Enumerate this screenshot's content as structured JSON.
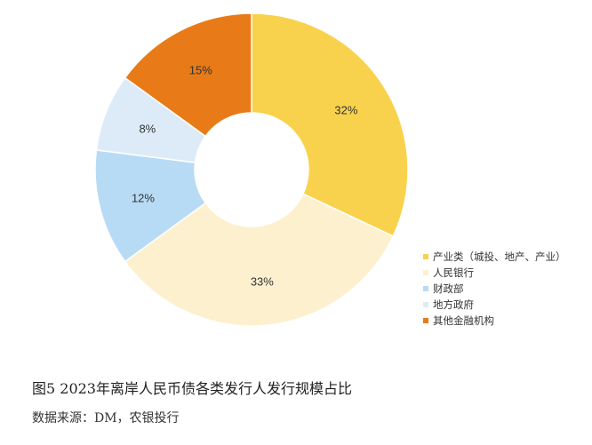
{
  "chart_data": {
    "type": "pie",
    "donut": true,
    "start_angle_deg": 0,
    "direction": "clockwise",
    "slices": [
      {
        "label": "产业类（城投、地产、产业）",
        "value": 32,
        "display": "32%",
        "color": "#F9D24D"
      },
      {
        "label": "人民银行",
        "value": 33,
        "display": "33%",
        "color": "#FDF0CE"
      },
      {
        "label": "财政部",
        "value": 12,
        "display": "12%",
        "color": "#B7DBF5"
      },
      {
        "label": "地方政府",
        "value": 8,
        "display": "8%",
        "color": "#DDEBF8"
      },
      {
        "label": "其他金融机构",
        "value": 15,
        "display": "15%",
        "color": "#E87B17"
      }
    ],
    "legend_position": "right"
  },
  "caption": {
    "title": "图5 2023年离岸人民币债各类发行人发行规模占比",
    "source": "数据来源：DM，农银投行"
  }
}
